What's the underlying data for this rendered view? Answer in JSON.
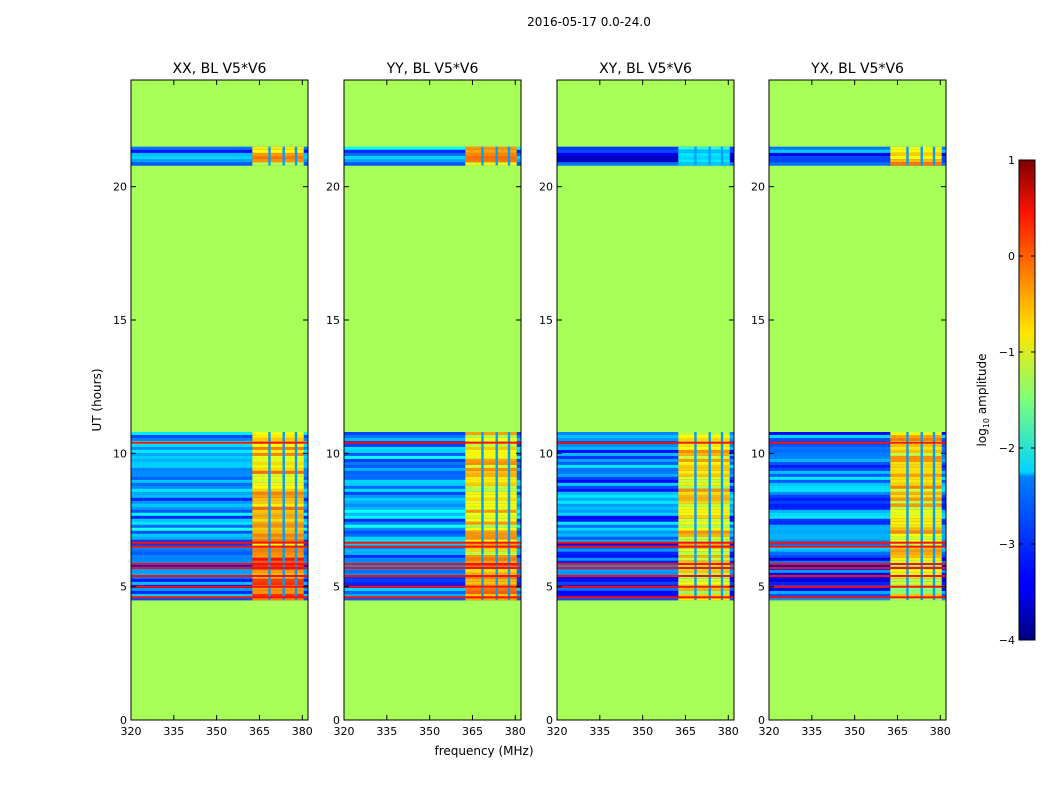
{
  "chart_data": {
    "type": "heatmap",
    "title": "2016-05-17 0.0-24.0",
    "xlabel": "frequency (MHz)",
    "ylabel": "UT (hours)",
    "xlim": [
      320,
      382
    ],
    "ylim": [
      0,
      24
    ],
    "xticks": [
      320,
      335,
      350,
      365,
      380
    ],
    "yticks": [
      0,
      5,
      10,
      15,
      20
    ],
    "colorbar": {
      "label": "log₁₀ amplitude",
      "label_base": "log",
      "label_sub": "10",
      "label_rest": " amplitude",
      "ticks": [
        1,
        0,
        -1,
        -2,
        -3,
        -4
      ],
      "tick_labels": [
        "1",
        "0",
        "−1",
        "−2",
        "−3",
        "−4"
      ],
      "range": [
        -4,
        1
      ],
      "cmap": "jet"
    },
    "background_value": -1.3,
    "panels": [
      {
        "title": "XX, BL V5*V6",
        "hot_band": [
          362.5,
          380.5
        ],
        "bands": [
          {
            "ut_start": 4.5,
            "ut_end": 6.2,
            "base": -2.9,
            "hot": -0.2
          },
          {
            "ut_start": 6.2,
            "ut_end": 10.8,
            "base": -2.6,
            "hot": -0.6
          },
          {
            "ut_start": 20.8,
            "ut_end": 21.5,
            "base": -2.7,
            "hot": -0.7
          }
        ],
        "red_lines_ut": [
          4.6,
          5.0,
          5.4,
          5.7,
          5.85,
          6.5,
          6.65,
          10.4
        ]
      },
      {
        "title": "YY, BL V5*V6",
        "hot_band": [
          362.5,
          380.5
        ],
        "bands": [
          {
            "ut_start": 4.5,
            "ut_end": 6.2,
            "base": -2.9,
            "hot": -0.4
          },
          {
            "ut_start": 6.2,
            "ut_end": 10.8,
            "base": -2.6,
            "hot": -0.8
          },
          {
            "ut_start": 20.8,
            "ut_end": 21.5,
            "base": -2.6,
            "hot": -0.6
          }
        ],
        "red_lines_ut": [
          4.6,
          5.0,
          5.4,
          5.7,
          5.85,
          6.5,
          6.65,
          10.4
        ]
      },
      {
        "title": "XY, BL V5*V6",
        "hot_band": [
          362.5,
          380.5
        ],
        "bands": [
          {
            "ut_start": 4.5,
            "ut_end": 6.2,
            "base": -3.0,
            "hot": -0.9
          },
          {
            "ut_start": 6.2,
            "ut_end": 10.8,
            "base": -2.8,
            "hot": -0.8
          },
          {
            "ut_start": 20.8,
            "ut_end": 21.5,
            "base": -3.2,
            "hot": -2.0
          }
        ],
        "red_lines_ut": [
          4.6,
          5.0,
          5.4,
          5.7,
          5.85,
          6.5,
          6.65,
          10.4
        ]
      },
      {
        "title": "YX, BL V5*V6",
        "hot_band": [
          362.5,
          380.5
        ],
        "bands": [
          {
            "ut_start": 4.5,
            "ut_end": 6.2,
            "base": -3.0,
            "hot": -1.0
          },
          {
            "ut_start": 6.2,
            "ut_end": 10.8,
            "base": -2.8,
            "hot": -0.7
          },
          {
            "ut_start": 20.8,
            "ut_end": 21.5,
            "base": -2.9,
            "hot": -0.5
          }
        ],
        "red_lines_ut": [
          4.6,
          5.0,
          5.4,
          5.7,
          5.85,
          6.5,
          6.65,
          10.4
        ]
      }
    ]
  }
}
